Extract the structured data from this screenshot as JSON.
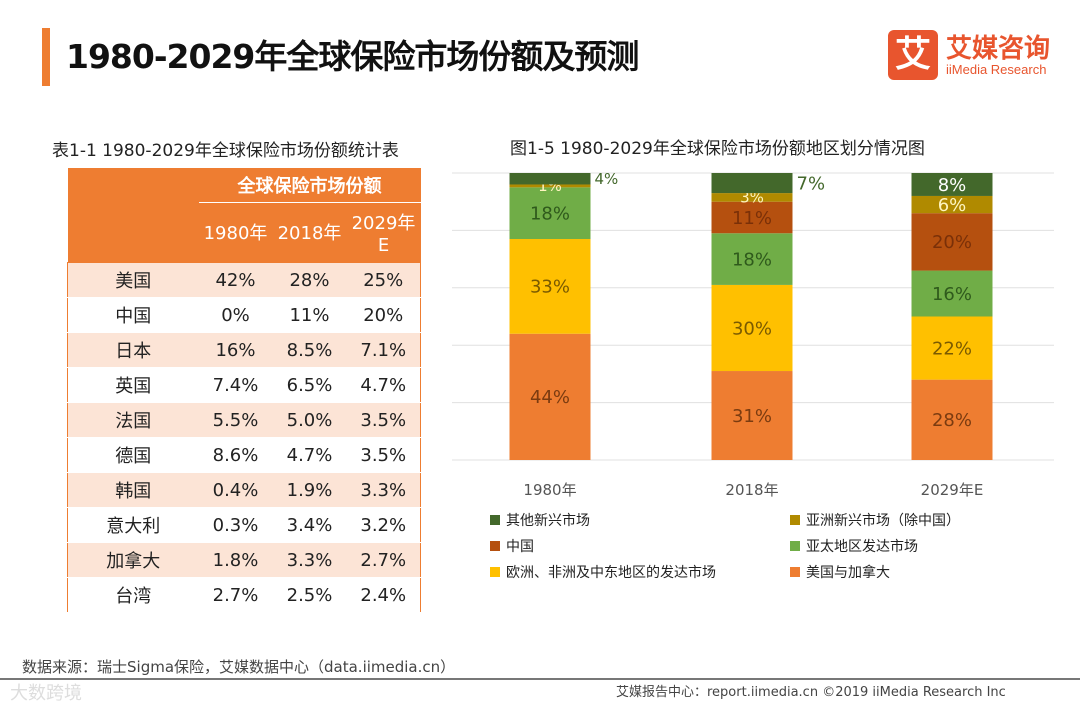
{
  "header": {
    "title": "1980-2029年全球保险市场份额及预测",
    "logo_mark": "艾",
    "logo_cn": "艾媒咨询",
    "logo_en": "iiMedia Research"
  },
  "table": {
    "title": "表1-1 1980-2029年全球保险市场份额统计表",
    "group_header": "全球保险市场份额",
    "columns": [
      "1980年",
      "2018年",
      "2029年E"
    ],
    "rows": [
      [
        "美国",
        "42%",
        "28%",
        "25%"
      ],
      [
        "中国",
        "0%",
        "11%",
        "20%"
      ],
      [
        "日本",
        "16%",
        "8.5%",
        "7.1%"
      ],
      [
        "英国",
        "7.4%",
        "6.5%",
        "4.7%"
      ],
      [
        "法国",
        "5.5%",
        "5.0%",
        "3.5%"
      ],
      [
        "德国",
        "8.6%",
        "4.7%",
        "3.5%"
      ],
      [
        "韩国",
        "0.4%",
        "1.9%",
        "3.3%"
      ],
      [
        "意大利",
        "0.3%",
        "3.4%",
        "3.2%"
      ],
      [
        "加拿大",
        "1.8%",
        "3.3%",
        "2.7%"
      ],
      [
        "台湾",
        "2.7%",
        "2.5%",
        "2.4%"
      ]
    ]
  },
  "chart_data": {
    "type": "bar",
    "stacked": true,
    "title": "图1-5 1980-2029年全球保险市场份额地区划分情况图",
    "categories": [
      "1980年",
      "2018年",
      "2029年E"
    ],
    "ylim": [
      0,
      100
    ],
    "grid": true,
    "legend_position": "bottom",
    "series": [
      {
        "name": "美国与加拿大",
        "color": "#ee7d31",
        "label_color": "#7a3b10",
        "values": [
          44,
          31,
          28
        ]
      },
      {
        "name": "欧洲、非洲及中东地区的发达市场",
        "color": "#ffc000",
        "label_color": "#7a5a00",
        "values": [
          33,
          30,
          22
        ]
      },
      {
        "name": "亚太地区发达市场",
        "color": "#70ad47",
        "label_color": "#2f5a1c",
        "values": [
          18,
          18,
          16
        ]
      },
      {
        "name": "中国",
        "color": "#b5500f",
        "label_color": "#7a3008",
        "values": [
          0,
          11,
          20
        ]
      },
      {
        "name": "亚洲新兴市场（除中国）",
        "color": "#b08a00",
        "label_color": "#fff5c0",
        "values": [
          1,
          3,
          6
        ]
      },
      {
        "name": "其他新兴市场",
        "color": "#43682b",
        "label_color": "#ffffff",
        "values": [
          4,
          7,
          8
        ]
      }
    ],
    "legend_order": [
      5,
      4,
      3,
      2,
      1,
      0
    ]
  },
  "source": "数据来源：瑞士Sigma保险，艾媒数据中心（data.iimedia.cn）",
  "footer": "艾媒报告中心：report.iimedia.cn ©2019 iiMedia Research Inc",
  "watermark": "大数跨境"
}
